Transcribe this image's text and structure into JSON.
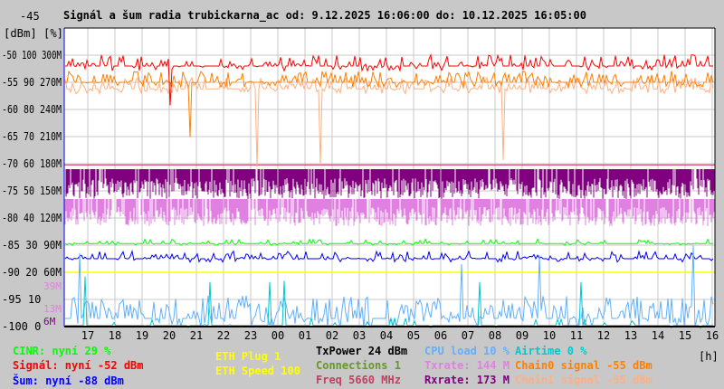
{
  "chart_data": {
    "type": "line",
    "title": "Signál a šum radia trubickarna_ac od: 9.12.2025 16:06:00 do: 10.12.2025 16:05:00",
    "ylabel": "[dBm] [%]",
    "xlabel": "[h]",
    "y_top_label": "-45",
    "x_ticks": [
      "17",
      "18",
      "19",
      "20",
      "21",
      "22",
      "23",
      "00",
      "01",
      "02",
      "03",
      "04",
      "05",
      "06",
      "07",
      "08",
      "09",
      "10",
      "11",
      "12",
      "13",
      "14",
      "15",
      "16"
    ],
    "y_ticks": [
      {
        "dbm": "-50",
        "pct": "100",
        "rate": "300M"
      },
      {
        "dbm": "-55",
        "pct": "90",
        "rate": "270M"
      },
      {
        "dbm": "-60",
        "pct": "80",
        "rate": "240M"
      },
      {
        "dbm": "-65",
        "pct": "70",
        "rate": "210M"
      },
      {
        "dbm": "-70",
        "pct": "60",
        "rate": "180M"
      },
      {
        "dbm": "-75",
        "pct": "50",
        "rate": "150M"
      },
      {
        "dbm": "-80",
        "pct": "40",
        "rate": "120M"
      },
      {
        "dbm": "-85",
        "pct": "30",
        "rate": "90M"
      },
      {
        "dbm": "-90",
        "pct": "20",
        "rate": "60M"
      },
      {
        "dbm": "-95",
        "pct": "10",
        "rate": ""
      },
      {
        "dbm": "-100",
        "pct": "0",
        "rate": ""
      }
    ],
    "extra_ticks": [
      {
        "label": "39M",
        "color": "#e080e0"
      },
      {
        "label": "13M",
        "color": "#e080e0"
      },
      {
        "label": "6M",
        "color": "#800080"
      }
    ],
    "ylim": [
      -100,
      -45
    ],
    "series": [
      {
        "name": "Signál",
        "unit": "dBm",
        "typical": -52,
        "color": "#ff0000"
      },
      {
        "name": "Chain0 signal",
        "unit": "dBm",
        "typical": -55,
        "color": "#ff8000"
      },
      {
        "name": "Chain1 signal",
        "unit": "dBm",
        "typical": -55,
        "color": "#ffb080"
      },
      {
        "name": "TxPower",
        "unit": "dBm",
        "typical": 24,
        "color": "#d02050"
      },
      {
        "name": "Rxrate",
        "unit": "M",
        "typical": 173,
        "color": "#800080"
      },
      {
        "name": "Txrate",
        "unit": "M",
        "typical": 144,
        "color": "#e080e0"
      },
      {
        "name": "CINR",
        "unit": "%",
        "typical": 29,
        "color": "#00ff00"
      },
      {
        "name": "Šum",
        "unit": "dBm",
        "typical": -88,
        "color": "#0000ff"
      },
      {
        "name": "ETH Speed",
        "typical": 100,
        "color": "#ffff00"
      },
      {
        "name": "CPU load",
        "unit": "%",
        "typical": 10,
        "color": "#60b0ff"
      },
      {
        "name": "Airtime",
        "unit": "%",
        "typical": 0,
        "color": "#00c8d0"
      }
    ]
  },
  "legend": [
    {
      "text": "CINR: nyní 29 %",
      "color": "#00ff00"
    },
    {
      "text": "Signál: nyní -52 dBm",
      "color": "#ff0000"
    },
    {
      "text": "Šum: nyní -88 dBm",
      "color": "#0000ff"
    },
    {
      "text": "ETH Plug 1",
      "color": "#ffff00"
    },
    {
      "text": "ETH Speed 100",
      "color": "#ffff00"
    },
    {
      "text": "TxPower 24 dBm",
      "color": "#000000"
    },
    {
      "text": "Connections 1",
      "color": "#669922"
    },
    {
      "text": "Freq 5660 MHz",
      "color": "#c04060"
    },
    {
      "text": "CPU load 10 %",
      "color": "#60b0ff"
    },
    {
      "text": "Txrate: 144 M",
      "color": "#e080e0"
    },
    {
      "text": "Rxrate: 173 M",
      "color": "#800080"
    },
    {
      "text": "Airtime 0 %",
      "color": "#00c8d0"
    },
    {
      "text": "Chain0 signal -55 dBm",
      "color": "#ff8000"
    },
    {
      "text": "Chain1 signal -55 dBm",
      "color": "#ffb080"
    }
  ]
}
